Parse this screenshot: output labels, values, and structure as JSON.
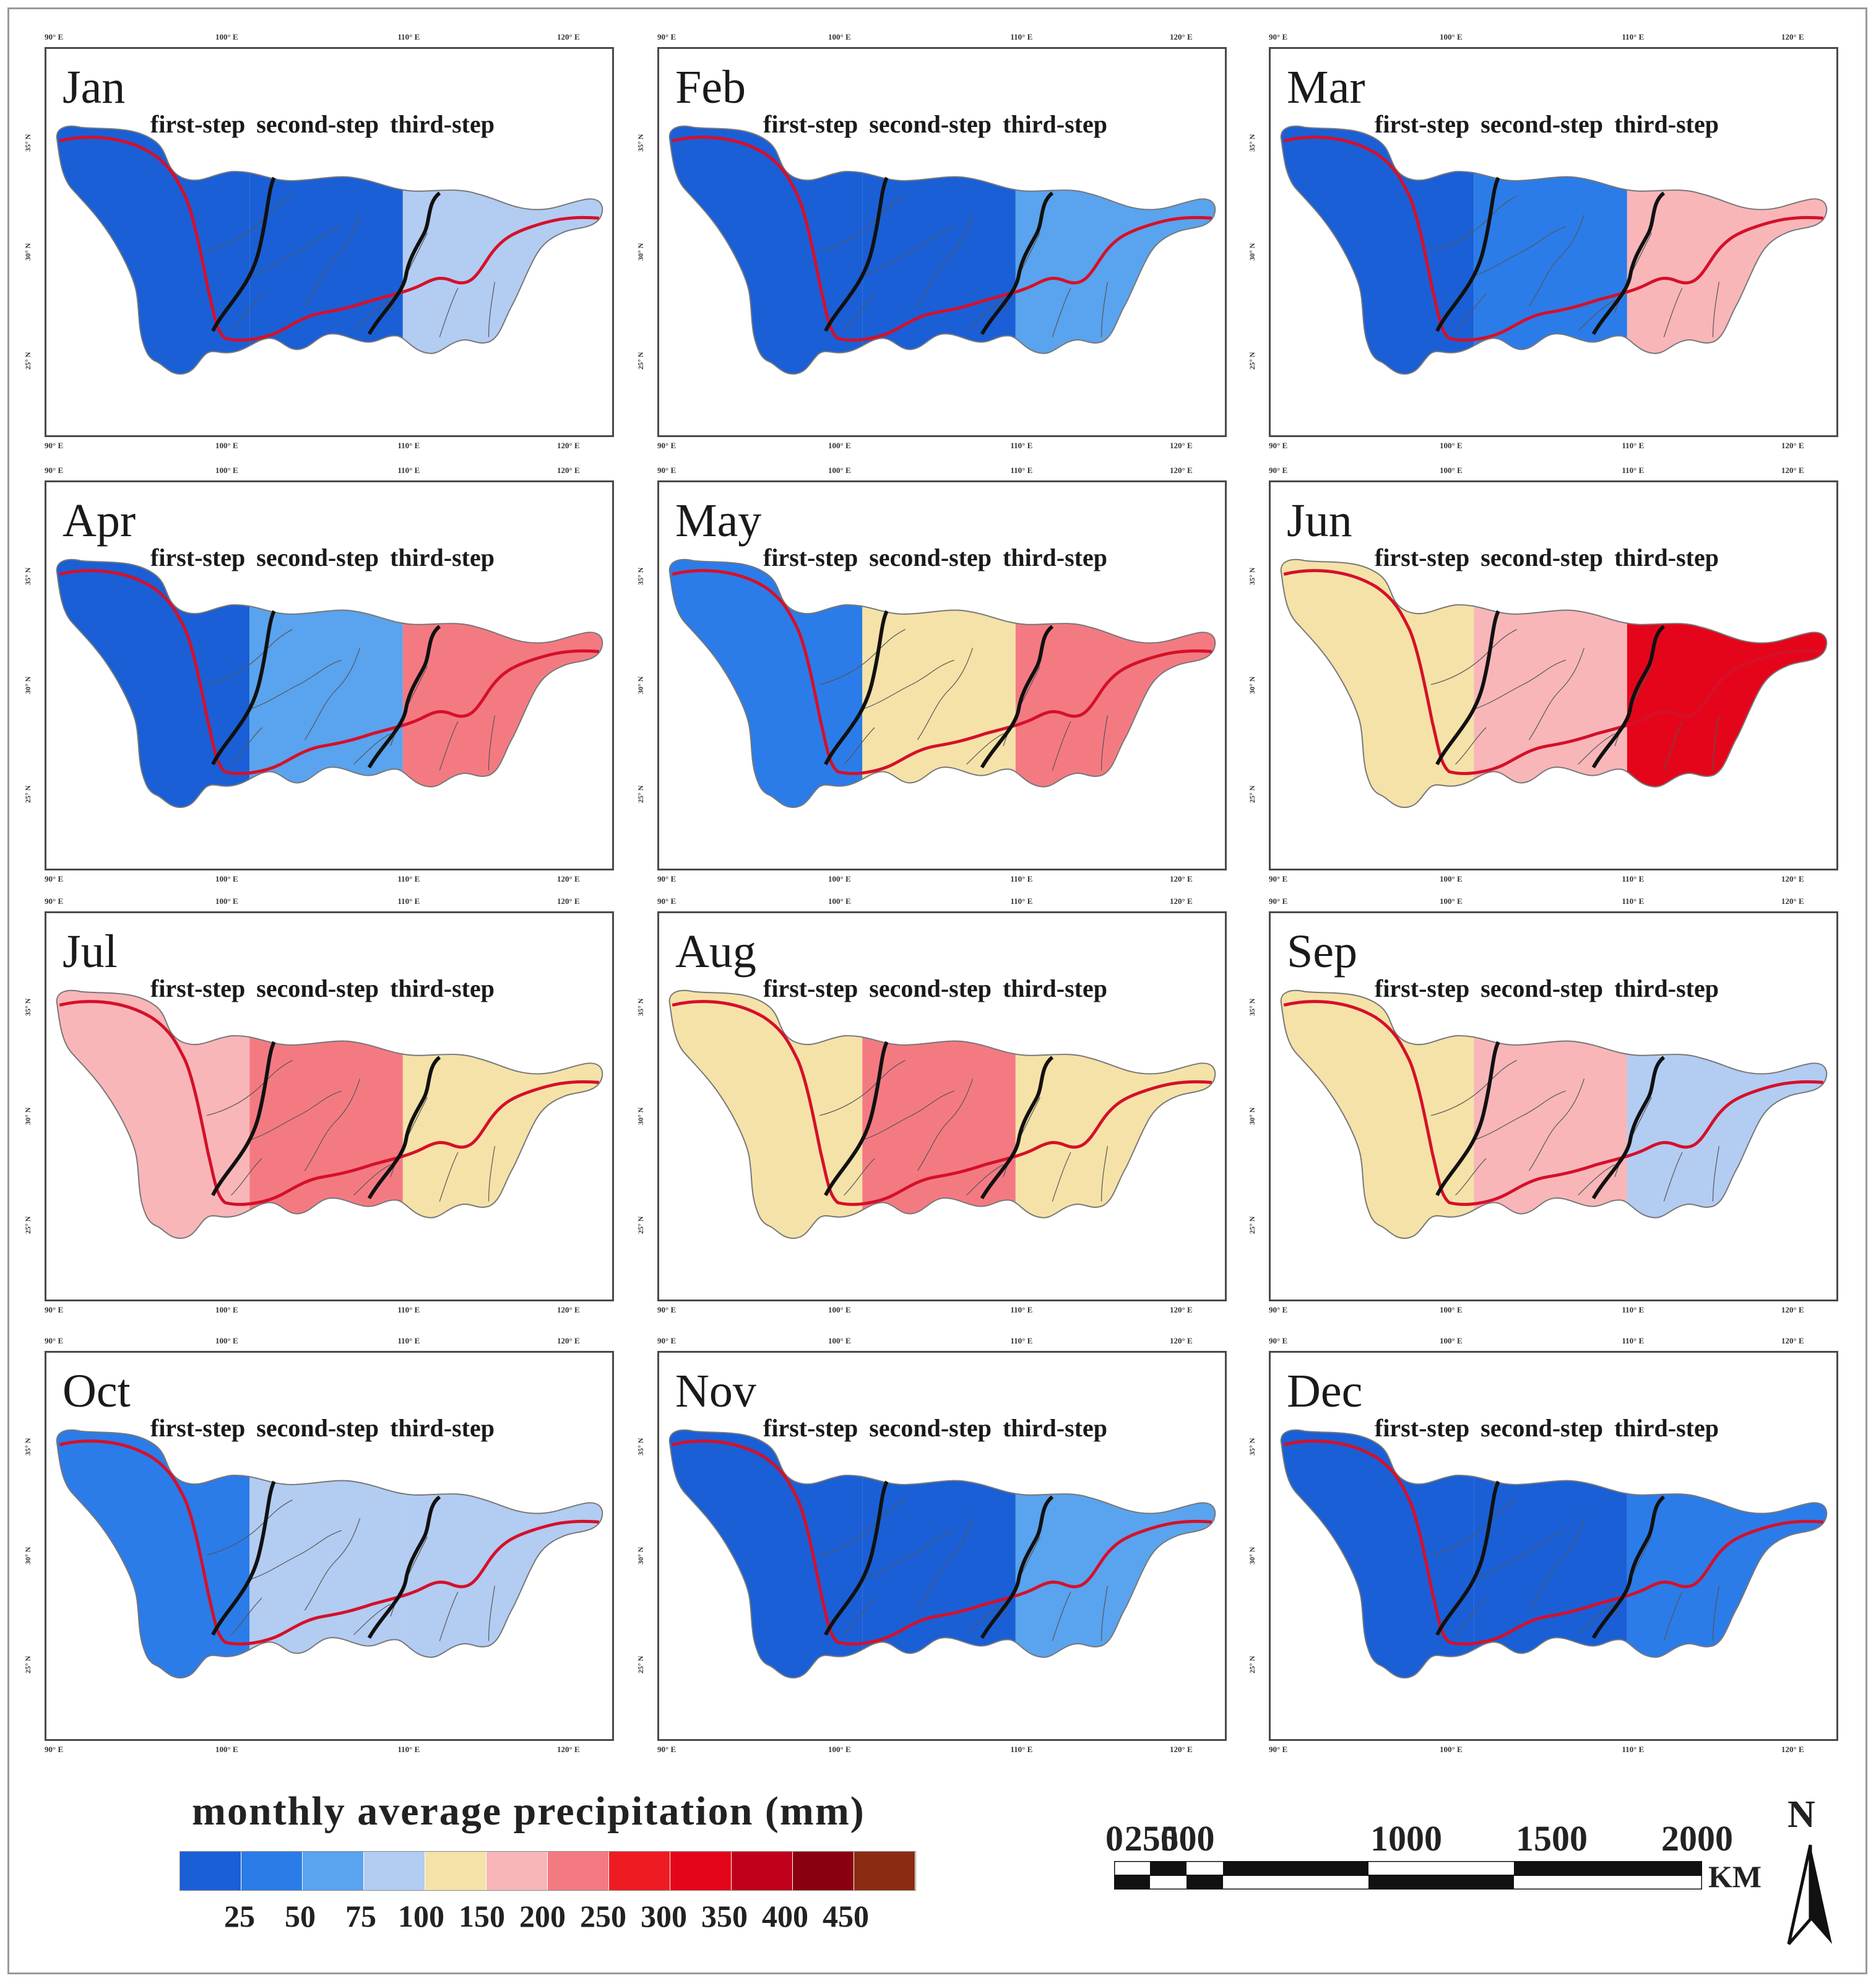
{
  "legend": {
    "title": "monthly average precipitation (mm)",
    "labels": [
      "25",
      "50",
      "75",
      "100",
      "150",
      "200",
      "250",
      "300",
      "350",
      "400",
      "450"
    ],
    "colors": [
      "#1a5fd6",
      "#2b7ce8",
      "#5aa3ee",
      "#b3ccf2",
      "#f5e2a8",
      "#f8b6b9",
      "#f47a82",
      "#ee1c22",
      "#e5051a",
      "#c0001a",
      "#8a0010",
      "#8b2c12"
    ]
  },
  "scale_bar": {
    "labels": [
      "0",
      "250",
      "500",
      "1000",
      "1500",
      "2000"
    ],
    "unit": "KM",
    "north": "N"
  },
  "step_labels": [
    "first-step",
    "second-step",
    "third-step"
  ],
  "axes": {
    "lon_ticks": [
      "90° E",
      "100° E",
      "110° E",
      "120° E"
    ],
    "lat_ticks": [
      "35° N",
      "30° N",
      "25° N"
    ]
  },
  "months": [
    {
      "name": "Jan",
      "zones": [
        0,
        0,
        3
      ]
    },
    {
      "name": "Feb",
      "zones": [
        0,
        0,
        2
      ]
    },
    {
      "name": "Mar",
      "zones": [
        0,
        1,
        5
      ]
    },
    {
      "name": "Apr",
      "zones": [
        0,
        2,
        6
      ]
    },
    {
      "name": "May",
      "zones": [
        1,
        4,
        6
      ]
    },
    {
      "name": "Jun",
      "zones": [
        4,
        5,
        8
      ]
    },
    {
      "name": "Jul",
      "zones": [
        5,
        6,
        4
      ]
    },
    {
      "name": "Aug",
      "zones": [
        4,
        6,
        4
      ]
    },
    {
      "name": "Sep",
      "zones": [
        4,
        5,
        3
      ]
    },
    {
      "name": "Oct",
      "zones": [
        1,
        3,
        3
      ]
    },
    {
      "name": "Nov",
      "zones": [
        0,
        0,
        2
      ]
    },
    {
      "name": "Dec",
      "zones": [
        0,
        0,
        1
      ]
    }
  ]
}
